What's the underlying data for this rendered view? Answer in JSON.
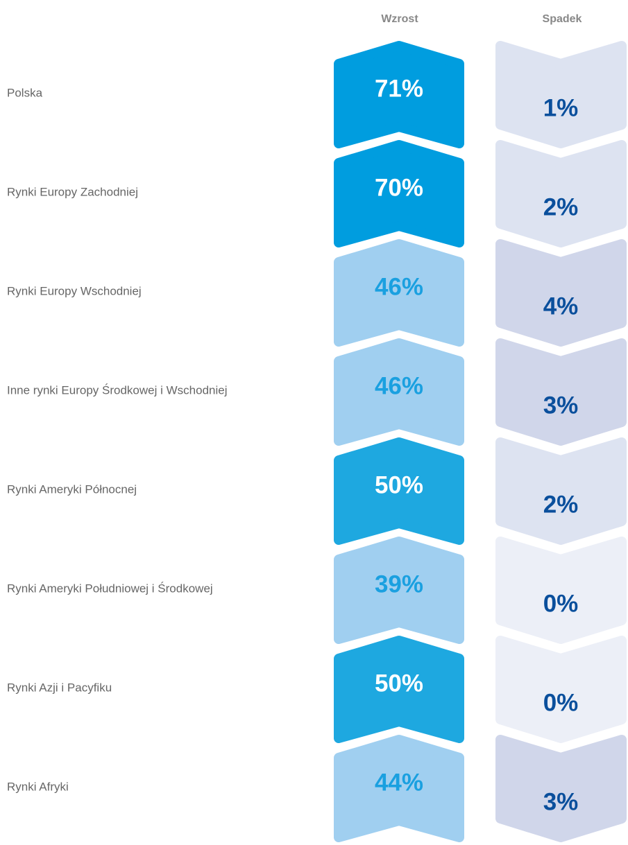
{
  "columns": [
    "Wzrost",
    "Spadek"
  ],
  "rows": [
    {
      "label": "Polska",
      "growth": "71%",
      "growth_color": "#009ddf",
      "decline": "1%",
      "decline_color": "#dde3f1"
    },
    {
      "label": "Rynki Europy Zachodniej",
      "growth": "70%",
      "growth_color": "#009ddf",
      "decline": "2%",
      "decline_color": "#dde3f1"
    },
    {
      "label": "Rynki Europy Wschodniej",
      "growth": "46%",
      "growth_color": "#a0cff0",
      "decline": "4%",
      "decline_color": "#d0d6ea"
    },
    {
      "label": "Inne rynki Europy Środkowej i Wschodniej",
      "growth": "46%",
      "growth_color": "#a0cff0",
      "decline": "3%",
      "decline_color": "#d0d6ea"
    },
    {
      "label": "Rynki Ameryki Północnej",
      "growth": "50%",
      "growth_color": "#1ea8e0",
      "decline": "2%",
      "decline_color": "#dde3f1"
    },
    {
      "label": "Rynki Ameryki Południowej i Środkowej",
      "growth": "39%",
      "growth_color": "#a0cff0",
      "decline": "0%",
      "decline_color": "#eceff7"
    },
    {
      "label": "Rynki Azji i Pacyfiku",
      "growth": "50%",
      "growth_color": "#1ea8e0",
      "decline": "0%",
      "decline_color": "#eceff7"
    },
    {
      "label": "Rynki Afryki",
      "growth": "44%",
      "growth_color": "#a0cff0",
      "decline": "3%",
      "decline_color": "#d0d6ea"
    }
  ]
}
